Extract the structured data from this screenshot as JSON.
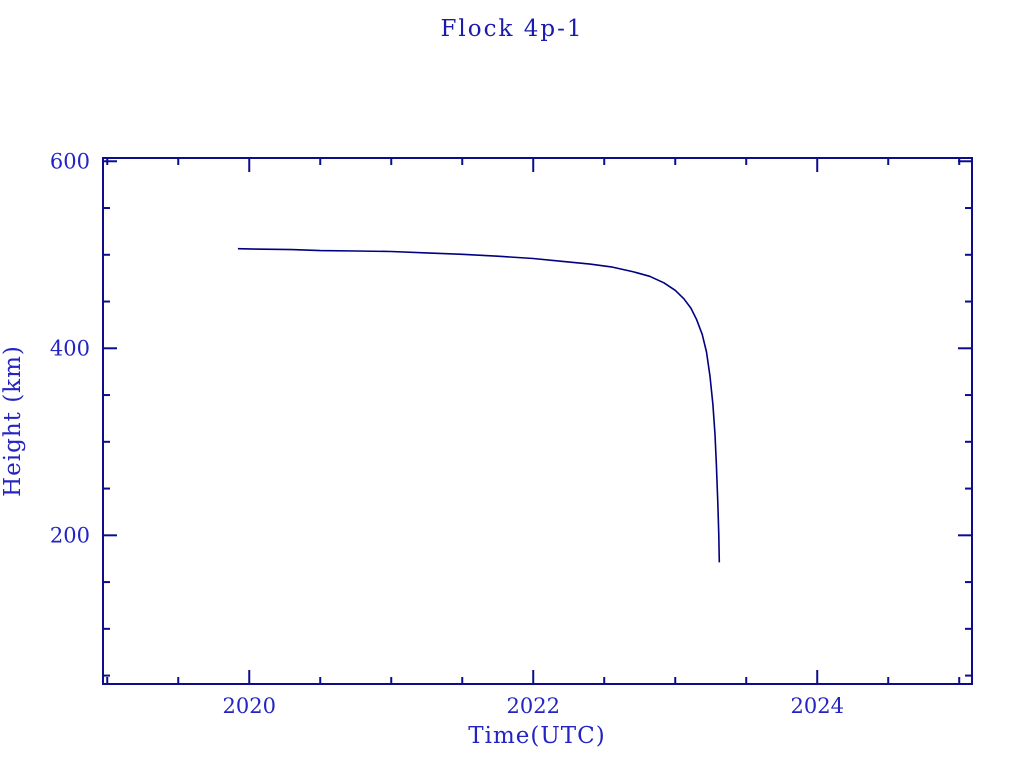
{
  "title": "Flock 4p-1",
  "chart_data": {
    "type": "line",
    "title": "Flock 4p-1",
    "xlabel": "Time(UTC)",
    "ylabel": "Height (km)",
    "xlim": [
      2018.97,
      2025.09
    ],
    "ylim": [
      41,
      603.5
    ],
    "x_major_ticks": [
      2020,
      2022,
      2024
    ],
    "x_minor_ticks": [
      2019,
      2019.5,
      2020.5,
      2021,
      2021.5,
      2022.5,
      2023,
      2023.5,
      2024.5,
      2025
    ],
    "y_major_ticks": [
      200,
      400,
      600
    ],
    "y_minor_ticks": [
      50,
      100,
      150,
      250,
      300,
      350,
      450,
      500,
      550
    ],
    "grid": false,
    "legend": "none",
    "series": [
      {
        "name": "Flock 4p-1 height",
        "points": [
          [
            2019.92,
            506.5
          ],
          [
            2020.1,
            506
          ],
          [
            2020.3,
            505.5
          ],
          [
            2020.5,
            504.5
          ],
          [
            2020.75,
            504
          ],
          [
            2021.0,
            503.5
          ],
          [
            2021.25,
            502
          ],
          [
            2021.5,
            500.5
          ],
          [
            2021.75,
            498.5
          ],
          [
            2022.0,
            496
          ],
          [
            2022.2,
            493
          ],
          [
            2022.4,
            490
          ],
          [
            2022.55,
            487
          ],
          [
            2022.7,
            482
          ],
          [
            2022.82,
            477
          ],
          [
            2022.92,
            470
          ],
          [
            2023.0,
            462
          ],
          [
            2023.06,
            453
          ],
          [
            2023.11,
            443
          ],
          [
            2023.15,
            431
          ],
          [
            2023.19,
            415
          ],
          [
            2023.22,
            396
          ],
          [
            2023.245,
            370
          ],
          [
            2023.265,
            340
          ],
          [
            2023.28,
            308
          ],
          [
            2023.29,
            275
          ],
          [
            2023.3,
            235
          ],
          [
            2023.307,
            200
          ],
          [
            2023.31,
            171
          ]
        ]
      }
    ],
    "colors": {
      "curve": "#000080",
      "axis": "#0d0d8c",
      "tick_label": "#2424c4",
      "title": "#1a1aae"
    }
  }
}
